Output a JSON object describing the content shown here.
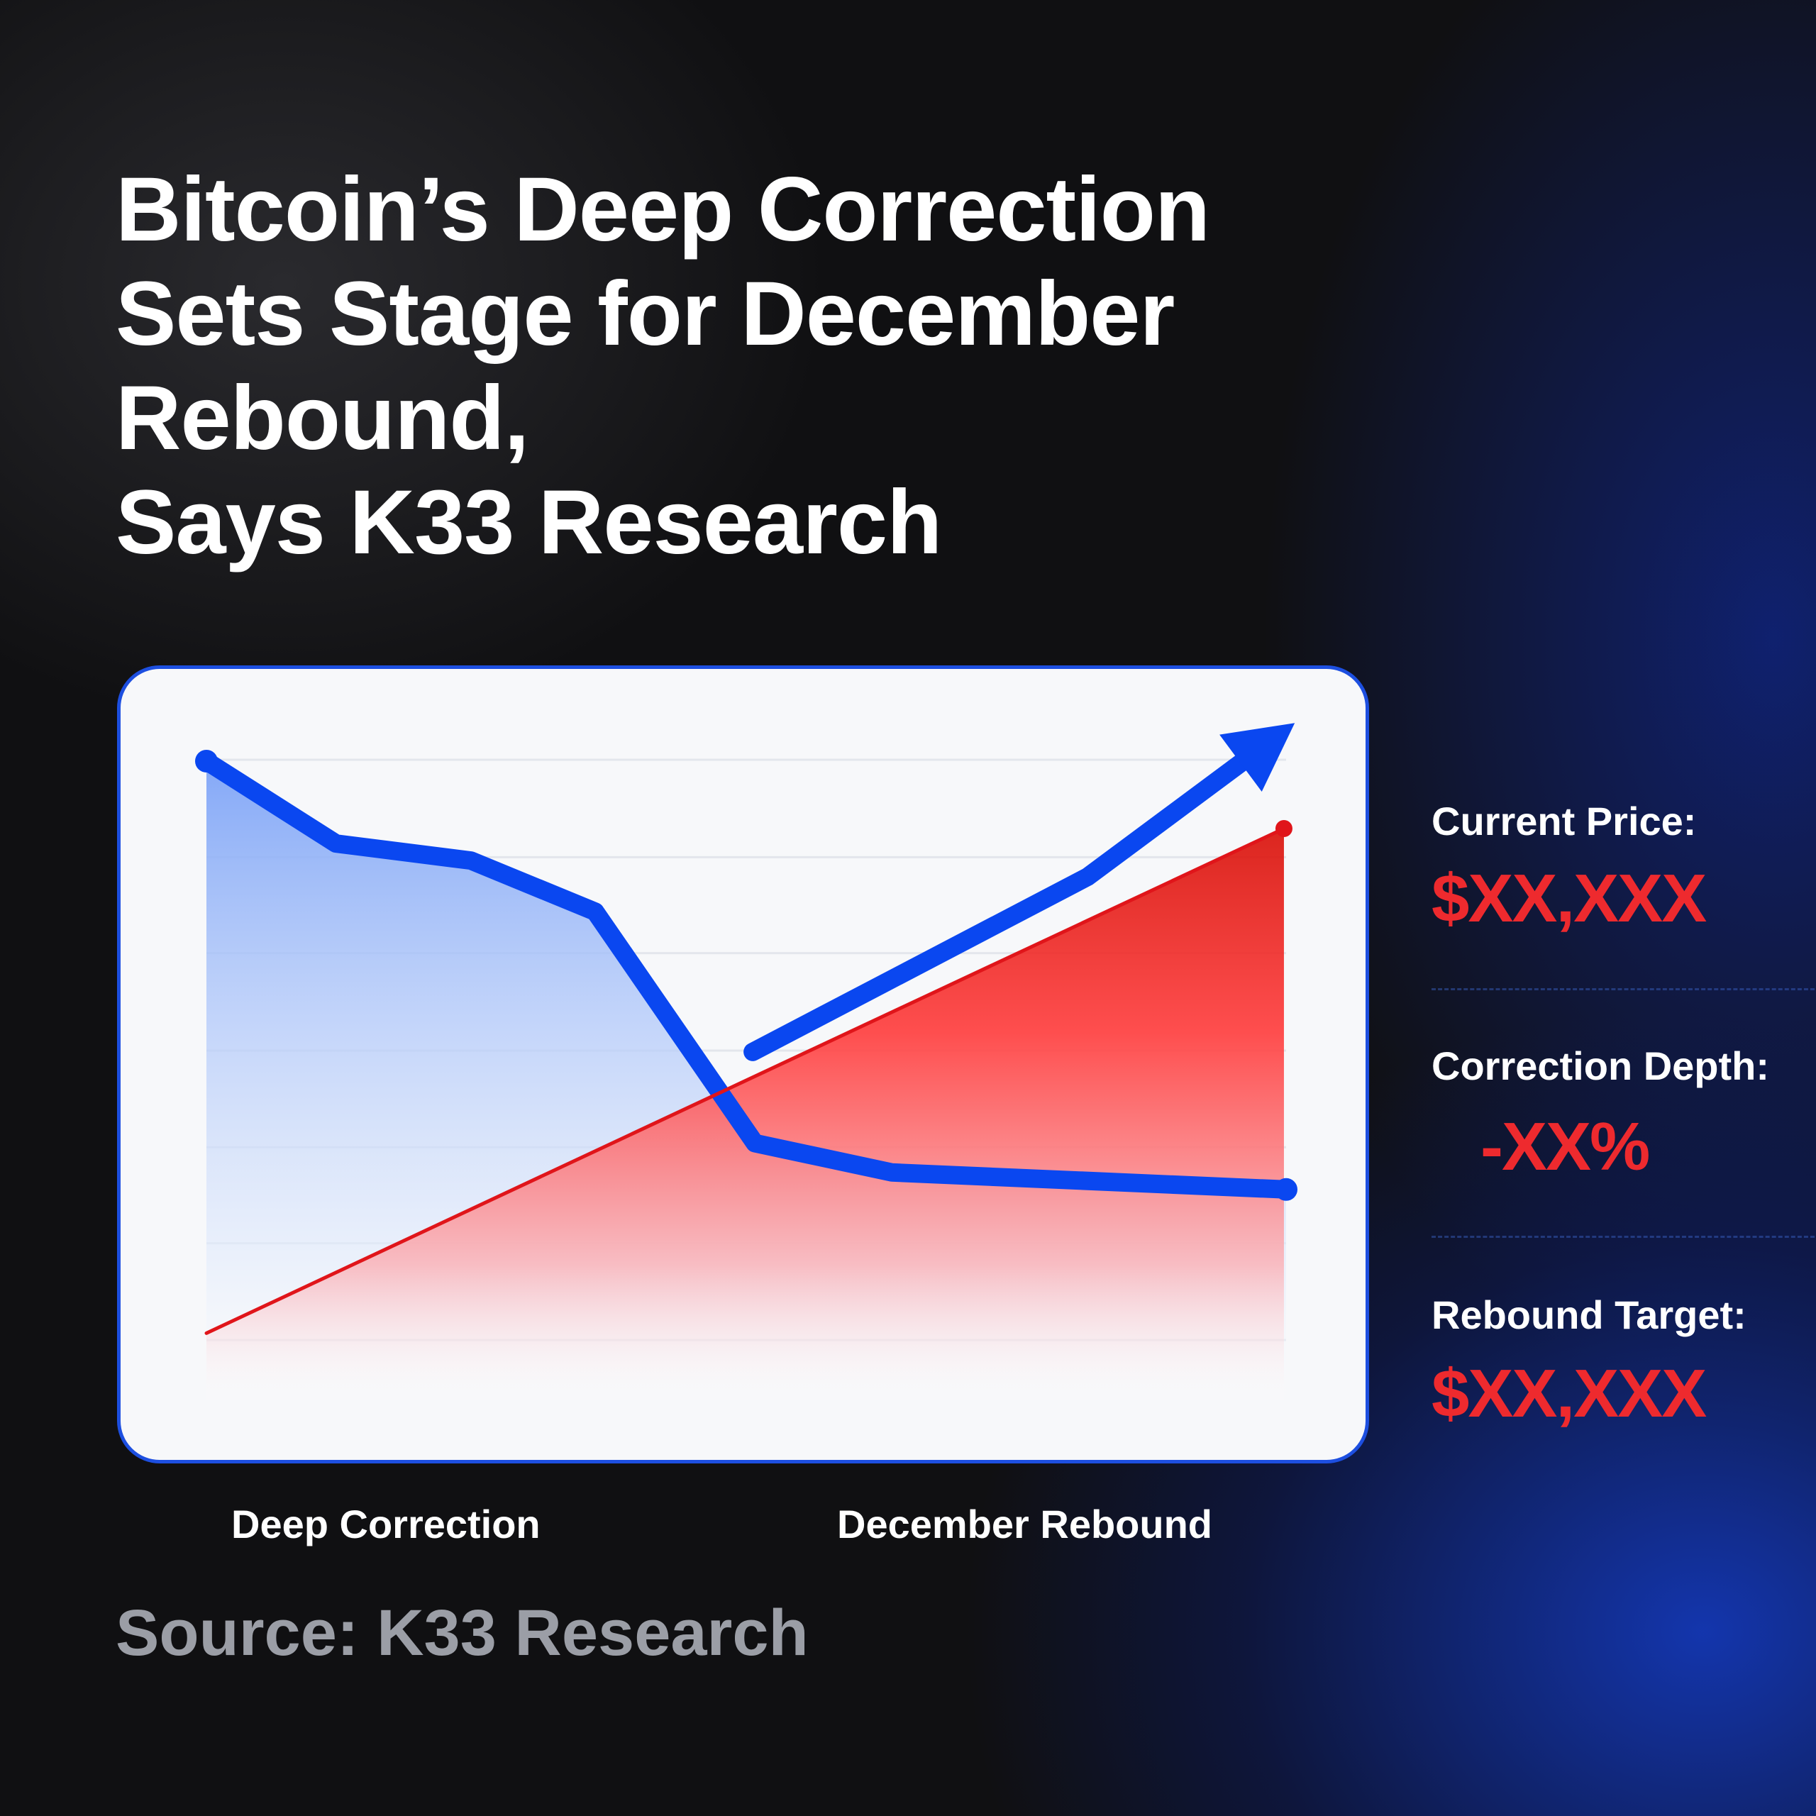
{
  "title_lines": [
    "Bitcoin’s Deep Correction",
    "Sets Stage for December",
    "Rebound,",
    "Says K33 Research"
  ],
  "stats": [
    {
      "label": "Current Price:",
      "value": "$XX,XXX"
    },
    {
      "label": "Correction Depth:",
      "value": "-XX%"
    },
    {
      "label": "Rebound Target:",
      "value": "$XX,XXX"
    }
  ],
  "source": "Source: K33 Research",
  "colors": {
    "blue": "#0a47f0",
    "red": "#e0151a",
    "value_red": "#ee2a2e"
  },
  "chart_data": {
    "type": "line",
    "title": "",
    "xlabel": "",
    "ylabel": "",
    "x_category_labels": [
      "Deep Correction",
      "December Rebound"
    ],
    "xlim": [
      0,
      100
    ],
    "ylim": [
      0,
      100
    ],
    "grid": true,
    "grid_y": [
      7.4,
      21.6,
      35.7,
      49.9,
      64.2,
      78.3,
      92.6
    ],
    "series": [
      {
        "name": "price",
        "color": "#0a47f0",
        "fill": "blue-gradient",
        "points": [
          [
            0,
            92.4
          ],
          [
            12,
            80.3
          ],
          [
            24.5,
            77.8
          ],
          [
            36,
            70.3
          ],
          [
            50.8,
            36.3
          ],
          [
            63.5,
            32
          ],
          [
            100,
            29.5
          ]
        ]
      },
      {
        "name": "rebound-trend",
        "color": "#0a47f0",
        "arrow": true,
        "points": [
          [
            50.6,
            49.7
          ],
          [
            81.6,
            75.4
          ],
          [
            100.8,
            98
          ]
        ]
      },
      {
        "name": "red-trend",
        "color": "#e0151a",
        "fill": "red-gradient",
        "points": [
          [
            0,
            8.4
          ],
          [
            99.8,
            82.5
          ]
        ]
      }
    ]
  }
}
